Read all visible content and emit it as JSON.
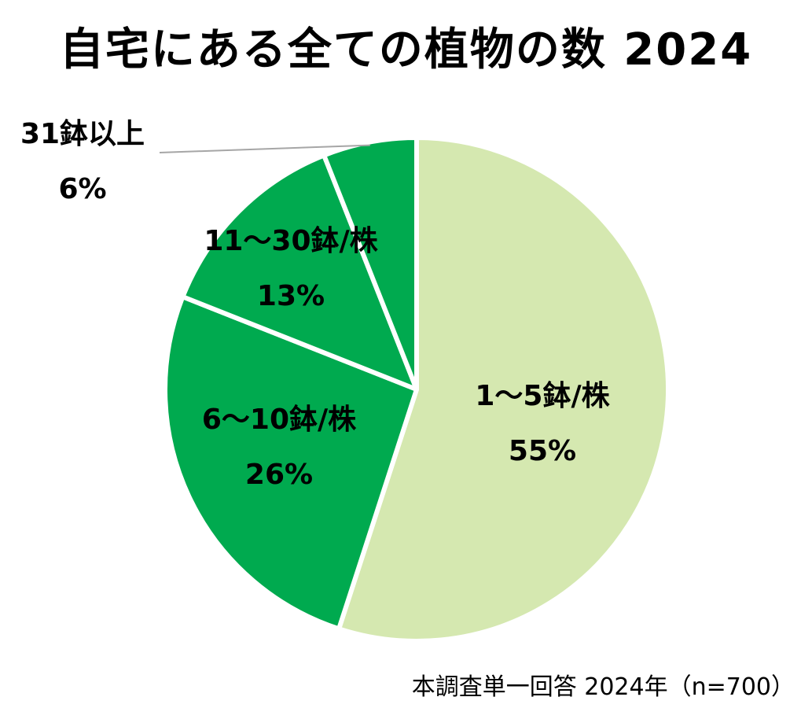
{
  "chart_data": {
    "type": "pie",
    "title": "自宅にある全ての植物の数 2024",
    "categories": [
      "1～5鉢/株",
      "6～10鉢/株",
      "11～30鉢/株",
      "31鉢以上"
    ],
    "values": [
      55,
      26,
      13,
      6
    ],
    "value_labels": [
      "55%",
      "26%",
      "13%",
      "6%"
    ],
    "colors": [
      "#d5e8b0",
      "#00aa4f",
      "#00aa4f",
      "#00aa4f"
    ],
    "start_angle_deg": 0,
    "direction": "clockwise",
    "leader_line_color": "#a6a6a6"
  },
  "footnote": "本調査単一回答  2024年（n=700）"
}
